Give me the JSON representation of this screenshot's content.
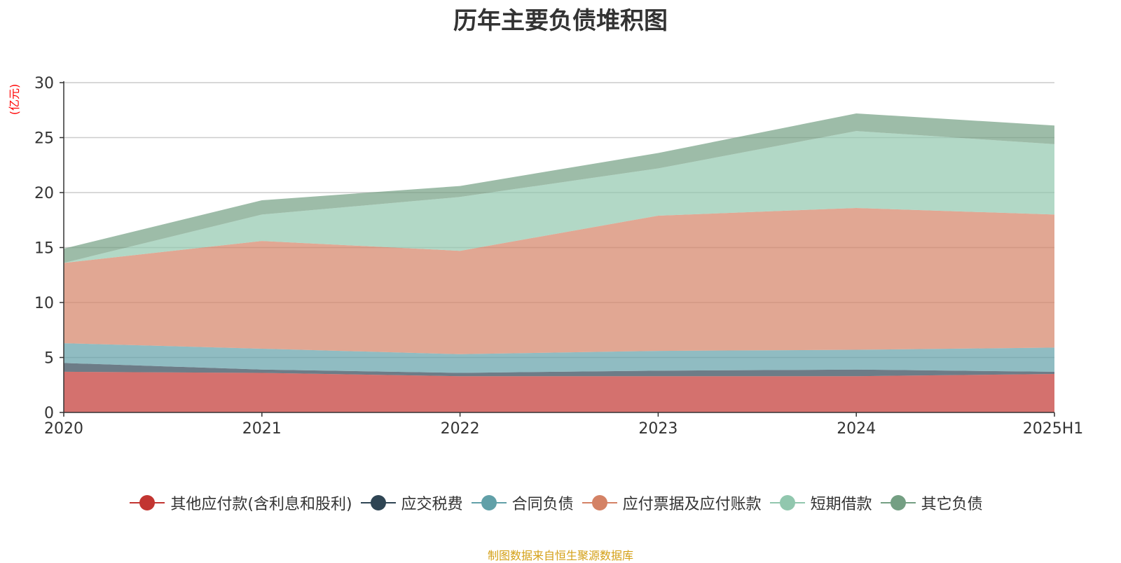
{
  "chart_data": {
    "type": "area",
    "stacked": true,
    "title": "历年主要负债堆积图",
    "ylabel": "(亿元)",
    "xlabel": "",
    "ylim": [
      0,
      30
    ],
    "yticks": [
      0,
      5,
      10,
      15,
      20,
      25,
      30
    ],
    "categories": [
      "2020",
      "2021",
      "2022",
      "2023",
      "2024",
      "2025H1"
    ],
    "series": [
      {
        "name": "其他应付款(含利息和股利)",
        "color": "#c23531",
        "values": [
          3.7,
          3.6,
          3.3,
          3.3,
          3.3,
          3.5
        ]
      },
      {
        "name": "应交税费",
        "color": "#2f4554",
        "values": [
          0.8,
          0.3,
          0.3,
          0.5,
          0.6,
          0.2
        ]
      },
      {
        "name": "合同负债",
        "color": "#61a0a8",
        "values": [
          1.8,
          1.9,
          1.7,
          1.8,
          1.8,
          2.2
        ]
      },
      {
        "name": "应付票据及应付账款",
        "color": "#d48265",
        "values": [
          7.3,
          9.8,
          9.4,
          12.3,
          12.9,
          12.1
        ]
      },
      {
        "name": "短期借款",
        "color": "#91c7ae",
        "values": [
          0.0,
          2.4,
          4.9,
          4.3,
          7.0,
          6.4
        ]
      },
      {
        "name": "其它负债",
        "color": "#749f83",
        "values": [
          1.3,
          1.3,
          1.0,
          1.4,
          1.6,
          1.7
        ]
      }
    ],
    "grid": true,
    "legend_position": "bottom"
  },
  "footer": {
    "source": "制图数据来自恒生聚源数据库"
  }
}
